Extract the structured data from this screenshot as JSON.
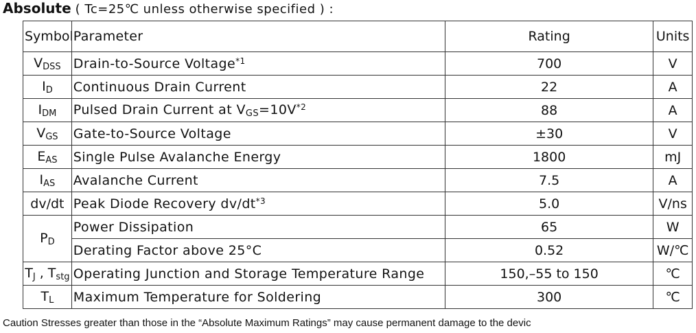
{
  "heading": {
    "title": "Absolute",
    "conditions": "( Tc=25℃  unless otherwise specified ) :"
  },
  "table": {
    "headers": [
      "Symbol",
      "Parameter",
      "Rating",
      "Units"
    ],
    "rows": [
      {
        "symbol_main": "V",
        "symbol_sub": "DSS",
        "parameter": "Drain-to-Source Voltage",
        "note": "*1",
        "rating": "700",
        "unit": "V"
      },
      {
        "symbol_main": "I",
        "symbol_sub": "D",
        "parameter": "Continuous Drain Current",
        "note": "",
        "rating": "22",
        "unit": "A"
      },
      {
        "symbol_main": "I",
        "symbol_sub": "DM",
        "parameter_pre": "Pulsed Drain Current at V",
        "parameter_sub": "GS",
        "parameter_post": "=10V",
        "note": "*2",
        "rating": "88",
        "unit": "A"
      },
      {
        "symbol_main": "V",
        "symbol_sub": "GS",
        "parameter": "Gate-to-Source Voltage",
        "note": "",
        "rating": "±30",
        "unit": "V"
      },
      {
        "symbol_main": "E",
        "symbol_sub": "AS",
        "parameter": "Single Pulse Avalanche Energy",
        "note": "",
        "rating": "1800",
        "unit": "mJ"
      },
      {
        "symbol_main": "I",
        "symbol_sub": "AS",
        "parameter": "Avalanche Current",
        "note": "",
        "rating": "7.5",
        "unit": "A"
      },
      {
        "symbol_main": "dv/dt",
        "symbol_sub": "",
        "parameter": "Peak Diode Recovery dv/dt",
        "note": "*3",
        "rating": "5.0",
        "unit": "V/ns"
      },
      {
        "symbol_main": "P",
        "symbol_sub": "D",
        "parameter": "Power Dissipation",
        "note": "",
        "rating": "65",
        "unit": "W"
      },
      {
        "symbol_main": "",
        "symbol_sub": "",
        "parameter": "Derating Factor above 25°C",
        "note": "",
        "rating": "0.52",
        "unit": "W/℃"
      },
      {
        "symbol_main": "T",
        "symbol_sub": "J",
        "symbol_mid": " , T",
        "symbol_sub2": "stg",
        "parameter": "Operating Junction and Storage Temperature Range",
        "note": "",
        "rating": "150,–55 to 150",
        "unit": "℃"
      },
      {
        "symbol_main": "T",
        "symbol_sub": "L",
        "parameter": "Maximum Temperature for Soldering",
        "note": "",
        "rating": "300",
        "unit": "℃"
      }
    ]
  },
  "caution": "Caution Stresses greater than those in the   “Absolute Maximum Ratings”   may cause permanent damage to the devic"
}
